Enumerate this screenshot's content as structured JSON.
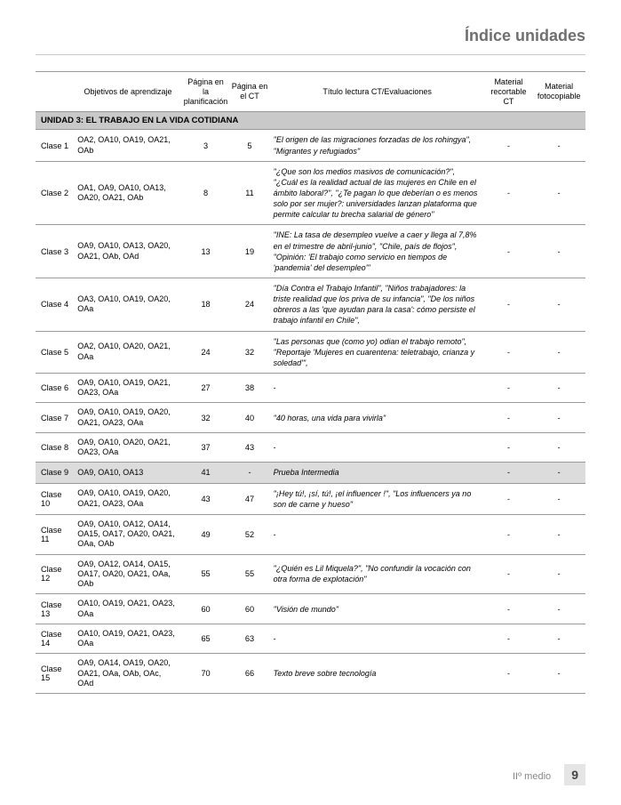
{
  "header": {
    "title": "Índice unidades"
  },
  "columns": {
    "c1": "",
    "c2": "Objetivos de aprendizaje",
    "c3": "Página en la planificación",
    "c4": "Página en el CT",
    "c5": "Título lectura CT/Evaluaciones",
    "c6": "Material recortable CT",
    "c7": "Material fotocopiable"
  },
  "unit": {
    "label": "UNIDAD 3: EL TRABAJO EN LA VIDA COTIDIANA"
  },
  "rows": [
    {
      "clase": "Clase 1",
      "oa": "OA2, OA10, OA19, OA21, OAb",
      "p1": "3",
      "p2": "5",
      "title": "\"El origen de las migraciones forzadas de los rohingya\", \"Migrantes y refugiados\"",
      "m1": "-",
      "m2": "-"
    },
    {
      "clase": "Clase 2",
      "oa": "OA1, OA9, OA10, OA13, OA20, OA21, OAb",
      "p1": "8",
      "p2": "11",
      "title": "\"¿Que son los medios masivos de comunicación?\", \"¿Cuál es la realidad actual de las mujeres en Chile en el ámbito laboral?\", \"¿Te pagan lo que deberían o es menos solo por ser mujer?: universidades lanzan plataforma que permite calcular tu brecha salarial de género\"",
      "m1": "-",
      "m2": "-"
    },
    {
      "clase": "Clase 3",
      "oa": "OA9, OA10, OA13, OA20, OA21, OAb, OAd",
      "p1": "13",
      "p2": "19",
      "title": "\"INE: La tasa de desempleo vuelve a caer y llega al 7,8% en el trimestre de abril-junio\", \"Chile, país de flojos\", \"Opinión: 'El trabajo como servicio en tiempos de 'pandemia' del desempleo'\"",
      "m1": "-",
      "m2": "-"
    },
    {
      "clase": "Clase 4",
      "oa": "OA3, OA10, OA19, OA20, OAa",
      "p1": "18",
      "p2": "24",
      "title": "\"Día Contra el Trabajo Infantil\", \"Niños trabajadores: la triste realidad que los priva de su infancia\", \"De los niños obreros a las 'que ayudan para la casa': cómo persiste el trabajo infantil en Chile\",",
      "m1": "-",
      "m2": "-"
    },
    {
      "clase": "Clase 5",
      "oa": "OA2, OA10, OA20, OA21, OAa",
      "p1": "24",
      "p2": "32",
      "title": "\"Las personas que (como yo) odian el trabajo remoto\", \"Reportaje 'Mujeres en cuarentena: teletrabajo, crianza y soledad'\",",
      "m1": "-",
      "m2": "-"
    },
    {
      "clase": "Clase 6",
      "oa": "OA9, OA10, OA19, OA21, OA23, OAa",
      "p1": "27",
      "p2": "38",
      "title": "-",
      "italic": false,
      "m1": "-",
      "m2": "-"
    },
    {
      "clase": "Clase 7",
      "oa": "OA9, OA10, OA19, OA20, OA21, OA23, OAa",
      "p1": "32",
      "p2": "40",
      "title": "\"40 horas, una vida para vivirla\"",
      "m1": "-",
      "m2": "-"
    },
    {
      "clase": "Clase 8",
      "oa": "OA9, OA10, OA20, OA21, OA23, OAa",
      "p1": "37",
      "p2": "43",
      "title": "-",
      "italic": false,
      "m1": "-",
      "m2": "-"
    },
    {
      "clase": "Clase 9",
      "oa": "OA9, OA10, OA13",
      "p1": "41",
      "p2": "-",
      "title": "Prueba Intermedia",
      "m1": "-",
      "m2": "-",
      "shaded": true
    },
    {
      "clase": "Clase 10",
      "oa": "OA9, OA10, OA19, OA20, OA21, OA23, OAa",
      "p1": "43",
      "p2": "47",
      "title": "\"¡Hey tú!, ¡sí, tú!, ¡el influencer !\", \"Los influencers ya no son de carne y hueso\"",
      "m1": "-",
      "m2": "-"
    },
    {
      "clase": "Clase 11",
      "oa": "OA9, OA10, OA12, OA14, OA15, OA17, OA20, OA21, OAa, OAb",
      "p1": "49",
      "p2": "52",
      "title": "-",
      "italic": false,
      "m1": "-",
      "m2": "-"
    },
    {
      "clase": "Clase 12",
      "oa": "OA9, OA12, OA14, OA15, OA17, OA20, OA21, OAa, OAb",
      "p1": "55",
      "p2": "55",
      "title": "\"¿Quién es Lil Miquela?\", \"No confundir la vocación con otra forma de explotación\"",
      "m1": "-",
      "m2": "-"
    },
    {
      "clase": "Clase 13",
      "oa": "OA10, OA19, OA21, OA23, OAa",
      "p1": "60",
      "p2": "60",
      "title": "\"Visión de mundo\"",
      "m1": "-",
      "m2": "-"
    },
    {
      "clase": "Clase 14",
      "oa": "OA10, OA19, OA21, OA23, OAa",
      "p1": "65",
      "p2": "63",
      "title": "-",
      "italic": false,
      "m1": "-",
      "m2": "-"
    },
    {
      "clase": "Clase 15",
      "oa": "OA9, OA14, OA19, OA20, OA21, OAa, OAb, OAc, OAd",
      "p1": "70",
      "p2": "66",
      "title": "Texto breve sobre tecnología",
      "m1": "-",
      "m2": "-"
    }
  ],
  "footer": {
    "label": "IIº medio",
    "page": "9"
  },
  "colors": {
    "header_text": "#6f6f6f",
    "rule": "#c8c8c8",
    "unit_bg": "#c9c9c9",
    "shade_bg": "#dcdcdc",
    "border": "#999999",
    "footer_text": "#878787",
    "pagenum_bg": "#e5e5e5"
  }
}
